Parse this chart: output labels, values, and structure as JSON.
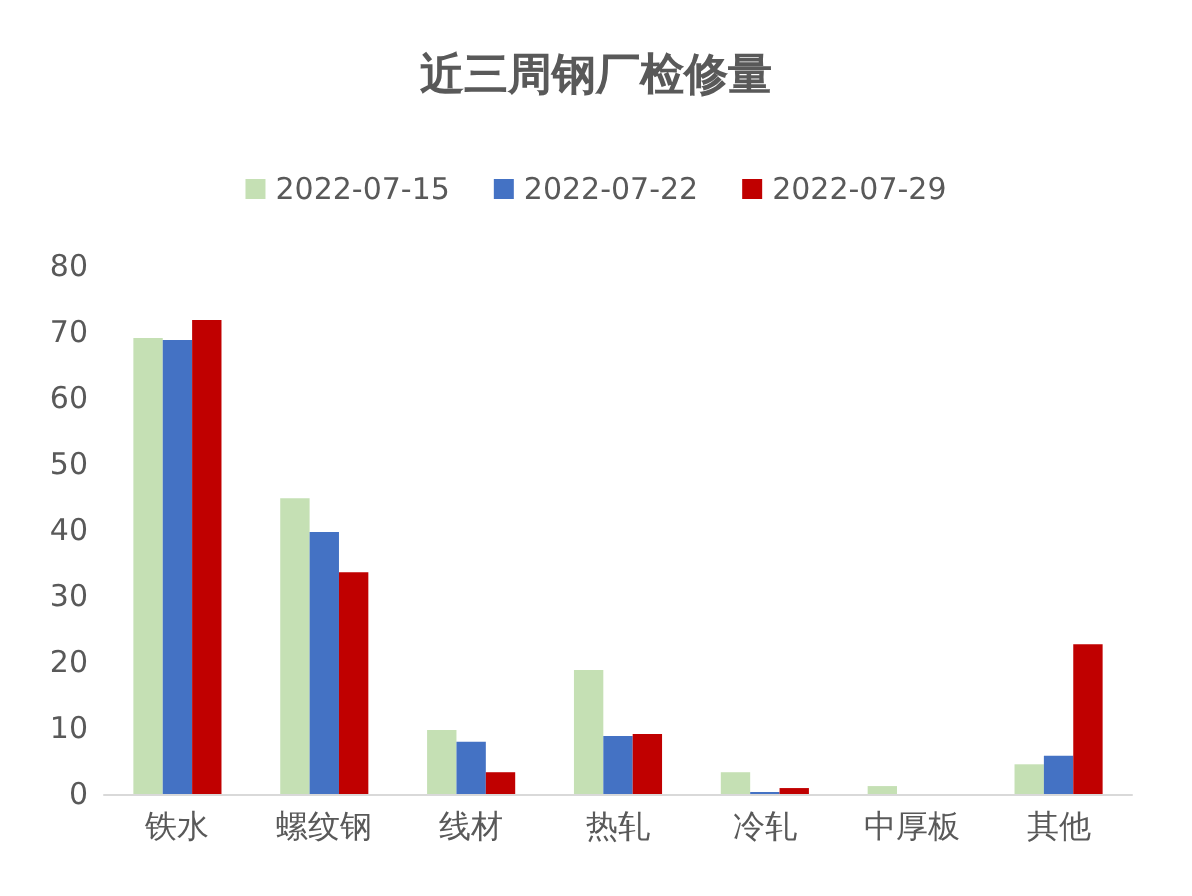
{
  "chart_data": {
    "type": "bar",
    "title": "近三周钢厂检修量",
    "categories": [
      "铁水",
      "螺纹钢",
      "线材",
      "热轧",
      "冷轧",
      "中厚板",
      "其他"
    ],
    "series": [
      {
        "name": "2022-07-15",
        "color": "#c5e0b4",
        "values": [
          69.1,
          44.8,
          9.7,
          18.8,
          3.3,
          1.2,
          4.5
        ]
      },
      {
        "name": "2022-07-22",
        "color": "#4472c4",
        "values": [
          68.8,
          39.7,
          7.9,
          8.8,
          0.3,
          0,
          5.8
        ]
      },
      {
        "name": "2022-07-29",
        "color": "#c00000",
        "values": [
          71.8,
          33.6,
          3.3,
          9.1,
          0.9,
          0,
          22.7
        ]
      }
    ],
    "ylim": [
      0,
      80
    ],
    "yticks": [
      0,
      10,
      20,
      30,
      40,
      50,
      60,
      70,
      80
    ],
    "grid": false,
    "legend": "top"
  }
}
